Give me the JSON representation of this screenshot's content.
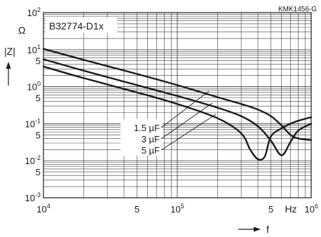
{
  "chart_data": {
    "type": "line",
    "figure_id": "KMK1456-G",
    "part_label": "B32774-D1x",
    "ylabel": "|Z|",
    "yunit": "Ω",
    "xlabel": "f",
    "xunit": "Hz",
    "xscale": "log",
    "yscale": "log",
    "xlim": [
      10000,
      1000000
    ],
    "ylim": [
      0.001,
      100
    ],
    "grid": true,
    "x_ticks": [
      {
        "value": 10000,
        "base": "10",
        "exp": "4"
      },
      {
        "value": 50000,
        "base": "5",
        "exp": ""
      },
      {
        "value": 100000,
        "base": "10",
        "exp": "5"
      },
      {
        "value": 500000,
        "base": "5",
        "exp": ""
      },
      {
        "value": 1000000,
        "base": "10",
        "exp": "6"
      }
    ],
    "y_ticks": [
      {
        "value": 100,
        "base": "10",
        "exp": "2"
      },
      {
        "value": 10,
        "base": "10",
        "exp": "1"
      },
      {
        "value": 5,
        "base": "5",
        "exp": ""
      },
      {
        "value": 1,
        "base": "10",
        "exp": "0"
      },
      {
        "value": 0.5,
        "base": "5",
        "exp": ""
      },
      {
        "value": 0.1,
        "base": "10",
        "exp": "-1"
      },
      {
        "value": 0.05,
        "base": "5",
        "exp": ""
      },
      {
        "value": 0.01,
        "base": "10",
        "exp": "-2"
      },
      {
        "value": 0.005,
        "base": "5",
        "exp": ""
      },
      {
        "value": 0.001,
        "base": "10",
        "exp": "-3"
      }
    ],
    "series": [
      {
        "name": "1.5 µF",
        "x": [
          10000,
          20000,
          50000,
          100000,
          200000,
          300000,
          400000,
          500000,
          600000,
          700000,
          800000,
          1000000
        ],
        "y": [
          10.5,
          5.3,
          2.2,
          1.1,
          0.52,
          0.34,
          0.24,
          0.16,
          0.09,
          0.05,
          0.04,
          0.036
        ]
      },
      {
        "name": "3 µF",
        "x": [
          10000,
          20000,
          50000,
          100000,
          200000,
          300000,
          400000,
          500000,
          600000,
          700000,
          800000,
          1000000
        ],
        "y": [
          5.5,
          2.7,
          1.1,
          0.56,
          0.27,
          0.16,
          0.085,
          0.035,
          0.014,
          0.032,
          0.065,
          0.1
        ]
      },
      {
        "name": "5 µF",
        "x": [
          10000,
          20000,
          50000,
          100000,
          200000,
          300000,
          350000,
          400000,
          450000,
          500000,
          600000,
          700000,
          800000,
          1000000
        ],
        "y": [
          3.5,
          1.7,
          0.7,
          0.34,
          0.14,
          0.055,
          0.02,
          0.011,
          0.013,
          0.045,
          0.075,
          0.1,
          0.12,
          0.15
        ]
      }
    ]
  }
}
